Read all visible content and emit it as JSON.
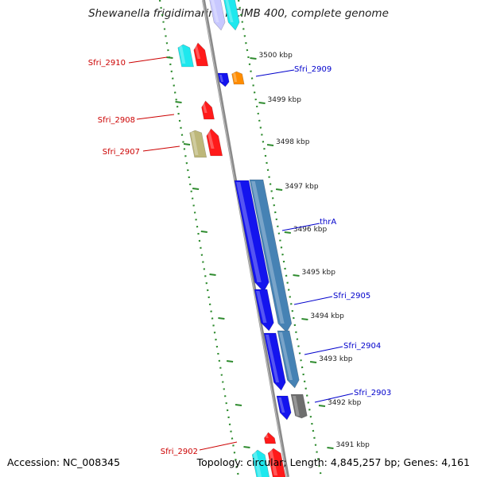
{
  "header": {
    "title": "Shewanella frigidimarina NCIMB 400, complete genome"
  },
  "footer": {
    "accession": "Accession: NC_008345",
    "topology": "Topology: circular; Length: 4,845,257 bp; Genes: 4,161"
  },
  "colors": {
    "backbone": "#8a8a8a",
    "ruler_dots": "#2e8b2e",
    "forward_label": "#cc0000",
    "reverse_label": "#0000cc",
    "tick_label": "#222222"
  },
  "ruler": {
    "unit": "kbp",
    "ticks": [
      {
        "label": "3500 kbp"
      },
      {
        "label": "3499 kbp"
      },
      {
        "label": "3498 kbp"
      },
      {
        "label": "3497 kbp"
      },
      {
        "label": "3496 kbp"
      },
      {
        "label": "3495 kbp"
      },
      {
        "label": "3494 kbp"
      },
      {
        "label": "3493 kbp"
      },
      {
        "label": "3492 kbp"
      },
      {
        "label": "3491 kbp"
      }
    ]
  },
  "gene_labels": {
    "forward": [
      {
        "label": "Sfri_2910"
      },
      {
        "label": "Sfri_2908"
      },
      {
        "label": "Sfri_2907"
      },
      {
        "label": "Sfri_2902"
      }
    ],
    "reverse": [
      {
        "label": "Sfri_2909"
      },
      {
        "label": "thrA"
      },
      {
        "label": "Sfri_2905"
      },
      {
        "label": "Sfri_2904"
      },
      {
        "label": "Sfri_2903"
      }
    ]
  },
  "gene_colors": {
    "red": "#ff1a1a",
    "cyan": "#1ee8ee",
    "olive": "#bdb77a",
    "blue": "#1414ee",
    "orange": "#ff8c00",
    "steelblue": "#4682b4",
    "gray": "#6e6e6e",
    "lavender": "#c8c8ff"
  }
}
